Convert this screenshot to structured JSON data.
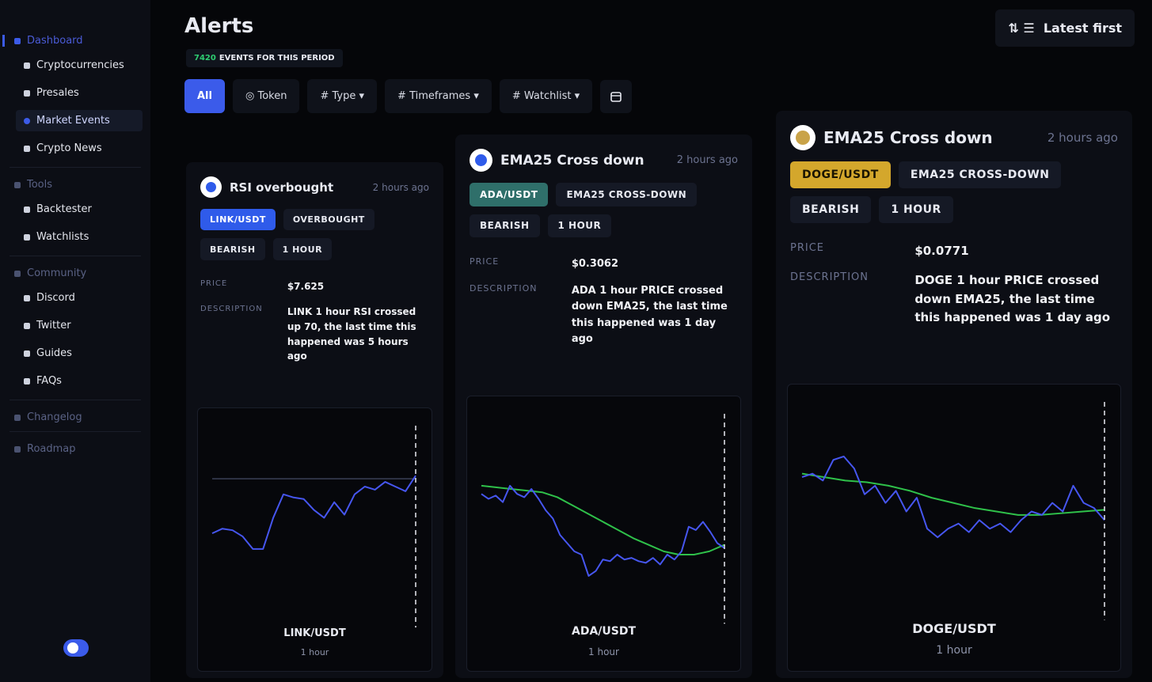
{
  "sidebar": {
    "sections": [
      {
        "title": "Dashboard",
        "items": [
          "Cryptocurrencies",
          "Presales",
          "Market Events",
          "Crypto News"
        ]
      },
      {
        "title": "Tools",
        "items": [
          "Backtester",
          "Watchlists"
        ]
      },
      {
        "title": "Community",
        "items": [
          "Discord",
          "Twitter",
          "Guides",
          "FAQs"
        ]
      },
      {
        "title": "Changelog",
        "items": []
      },
      {
        "title": "Roadmap",
        "items": []
      }
    ],
    "active": "Market Events"
  },
  "header": {
    "title": "Alerts",
    "count": "7420",
    "count_label": "EVENTS FOR THIS PERIOD",
    "sort": "Latest first"
  },
  "filters": [
    "All",
    "Token",
    "Type",
    "Timeframes",
    "Watchlist"
  ],
  "labels": {
    "price": "PRICE",
    "description": "DESCRIPTION"
  },
  "cards": [
    {
      "title": "RSI overbought",
      "time": "2 hours ago",
      "tags": [
        "LINK/USDT",
        "OVERBOUGHT",
        "BEARISH"
      ],
      "timeframe": "1 HOUR",
      "price": "$7.625",
      "description": "LINK 1 hour RSI crossed up 70, the last time this happened was 5 hours ago",
      "chart_pair": "LINK/USDT",
      "chart_timeframe": "1 hour",
      "tag_color": "#2f5bea",
      "icon_color": "#2f5bea",
      "chart": {
        "ylim": [
          0,
          100
        ],
        "threshold": 70,
        "price": [
          35,
          38,
          37,
          33,
          25,
          25,
          45,
          60,
          58,
          57,
          50,
          45,
          55,
          47,
          60,
          65,
          63,
          68,
          65,
          62,
          72
        ],
        "ema": []
      }
    },
    {
      "title": "EMA25 Cross down",
      "time": "2 hours ago",
      "tags": [
        "ADA/USDT",
        "EMA25 CROSS-DOWN",
        "BEARISH"
      ],
      "timeframe": "1 HOUR",
      "price": "$0.3062",
      "description": "ADA 1 hour PRICE crossed down EMA25, the last time this happened was 1 day ago",
      "chart_pair": "ADA/USDT",
      "chart_timeframe": "1 hour",
      "tag_color": "#2f6f6a",
      "icon_color": "#2f5bea",
      "chart": {
        "ylim": [
          0,
          100
        ],
        "price": [
          55,
          52,
          54,
          50,
          60,
          55,
          53,
          58,
          52,
          45,
          40,
          30,
          25,
          20,
          18,
          5,
          8,
          15,
          14,
          18,
          15,
          16,
          14,
          13,
          16,
          12,
          18,
          15,
          20,
          35,
          33,
          38,
          32,
          25,
          22
        ],
        "ema": [
          60,
          59,
          58,
          57,
          56,
          53,
          48,
          43,
          38,
          33,
          28,
          24,
          20,
          18,
          18,
          20,
          24
        ]
      }
    },
    {
      "title": "EMA25 Cross down",
      "time": "2 hours ago",
      "tags": [
        "DOGE/USDT",
        "EMA25 CROSS-DOWN",
        "BEARISH"
      ],
      "timeframe": "1 HOUR",
      "price": "$0.0771",
      "description": "DOGE 1 hour PRICE crossed down EMA25, the last time this happened was 1 day ago",
      "chart_pair": "DOGE/USDT",
      "chart_timeframe": "1 hour",
      "tag_color": "#d4a72c",
      "icon_color": "#c9a349",
      "chart": {
        "ylim": [
          0,
          100
        ],
        "price": [
          60,
          62,
          58,
          70,
          72,
          65,
          50,
          55,
          45,
          52,
          40,
          48,
          30,
          25,
          30,
          33,
          28,
          35,
          30,
          33,
          28,
          35,
          40,
          38,
          45,
          40,
          55,
          45,
          42,
          35
        ],
        "ema": [
          62,
          60,
          58,
          57,
          55,
          52,
          48,
          45,
          42,
          40,
          38,
          38,
          39,
          40,
          41
        ]
      }
    }
  ]
}
